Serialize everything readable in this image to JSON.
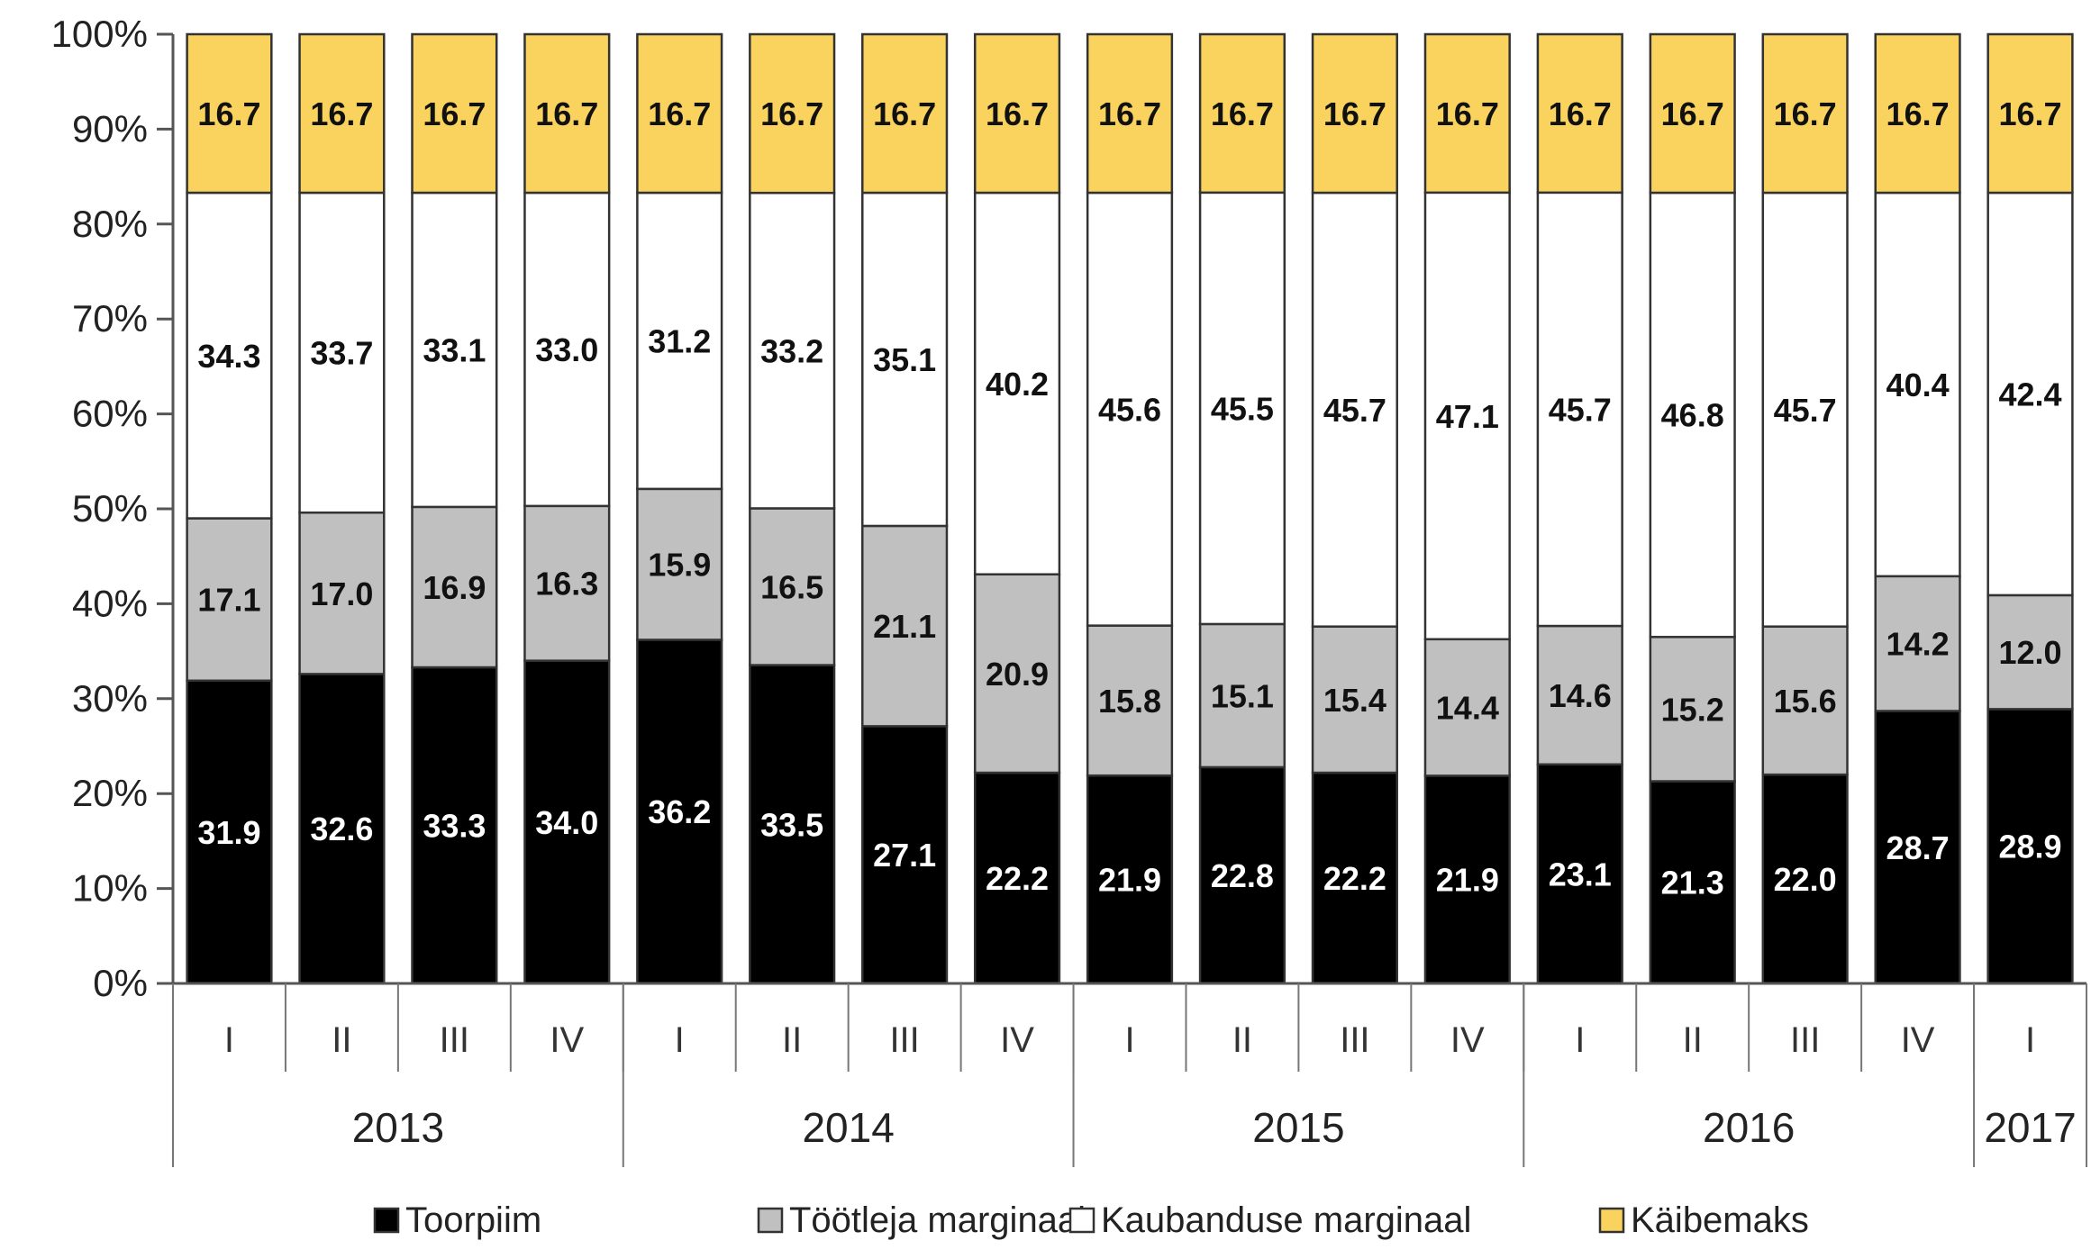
{
  "chart_data": {
    "type": "bar",
    "stacked": true,
    "percent": true,
    "quarters": [
      "I",
      "II",
      "III",
      "IV",
      "I",
      "II",
      "III",
      "IV",
      "I",
      "II",
      "III",
      "IV",
      "I",
      "II",
      "III",
      "IV",
      "I"
    ],
    "years": [
      {
        "label": "2013",
        "count": 4
      },
      {
        "label": "2014",
        "count": 4
      },
      {
        "label": "2015",
        "count": 4
      },
      {
        "label": "2016",
        "count": 4
      },
      {
        "label": "2017",
        "count": 1
      }
    ],
    "y_ticks": [
      "0%",
      "10%",
      "20%",
      "30%",
      "40%",
      "50%",
      "60%",
      "70%",
      "80%",
      "90%",
      "100%"
    ],
    "ylim": [
      0,
      100
    ],
    "series": [
      {
        "name": "Toorpiim",
        "color": "#000000",
        "label_color": "#ffffff",
        "values": [
          31.9,
          32.6,
          33.3,
          34.0,
          36.2,
          33.5,
          27.1,
          22.2,
          21.9,
          22.8,
          22.2,
          21.9,
          23.1,
          21.3,
          22.0,
          28.7,
          28.9
        ]
      },
      {
        "name": "Töötleja marginaal",
        "color": "#c0c0c0",
        "label_color": "#111111",
        "values": [
          17.1,
          17.0,
          16.9,
          16.3,
          15.9,
          16.5,
          21.1,
          20.9,
          15.8,
          15.1,
          15.4,
          14.4,
          14.6,
          15.2,
          15.6,
          14.2,
          12.0
        ]
      },
      {
        "name": "Kaubanduse marginaal",
        "color": "#ffffff",
        "label_color": "#111111",
        "values": [
          34.3,
          33.7,
          33.1,
          33.0,
          31.2,
          33.2,
          35.1,
          40.2,
          45.6,
          45.5,
          45.7,
          47.1,
          45.7,
          46.8,
          45.7,
          40.4,
          42.4
        ]
      },
      {
        "name": "Käibemaks",
        "color": "#f9d35e",
        "label_color": "#111111",
        "values": [
          16.7,
          16.7,
          16.7,
          16.7,
          16.7,
          16.7,
          16.7,
          16.7,
          16.7,
          16.7,
          16.7,
          16.7,
          16.7,
          16.7,
          16.7,
          16.7,
          16.7
        ]
      }
    ],
    "legend_position": "bottom"
  }
}
